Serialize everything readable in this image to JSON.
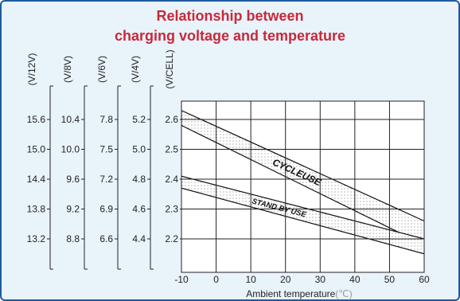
{
  "chart_data": {
    "type": "line",
    "title_lines": [
      "Relationship between",
      "charging voltage and temperature"
    ],
    "xlabel": "Ambient temperature",
    "xlabel_unit": "(℃)",
    "x_ticks": [
      -10,
      0,
      10,
      20,
      30,
      40,
      50,
      60
    ],
    "xlim": [
      -10,
      60
    ],
    "grid": true,
    "y_axes": [
      {
        "unit": "(V/12V)",
        "ticks": [
          "15.6",
          "15.0",
          "14.4",
          "13.8",
          "13.2"
        ]
      },
      {
        "unit": "(V/8V)",
        "ticks": [
          "10.4",
          "10.0",
          "9.6",
          "9.2",
          "8.8"
        ]
      },
      {
        "unit": "(V/6V)",
        "ticks": [
          "7.8",
          "7.5",
          "7.2",
          "6.9",
          "6.6"
        ]
      },
      {
        "unit": "(V/4V)",
        "ticks": [
          "5.2",
          "5.0",
          "4.8",
          "4.6",
          "4.4"
        ]
      },
      {
        "unit": "(V/CELL)",
        "ticks": [
          "2.6",
          "2.5",
          "2.4",
          "2.3",
          "2.2"
        ]
      }
    ],
    "cell_voltage_ticks": [
      2.6,
      2.5,
      2.4,
      2.3,
      2.2
    ],
    "ylim_cell": [
      2.15,
      2.65
    ],
    "series": [
      {
        "name": "CYCLEUSE",
        "x": [
          -10,
          60
        ],
        "upper": [
          2.63,
          2.26
        ],
        "lower": [
          2.58,
          2.18
        ]
      },
      {
        "name": "STAND BY USE",
        "x": [
          -10,
          60
        ],
        "upper": [
          2.41,
          2.2
        ],
        "lower": [
          2.37,
          2.15
        ]
      }
    ]
  }
}
